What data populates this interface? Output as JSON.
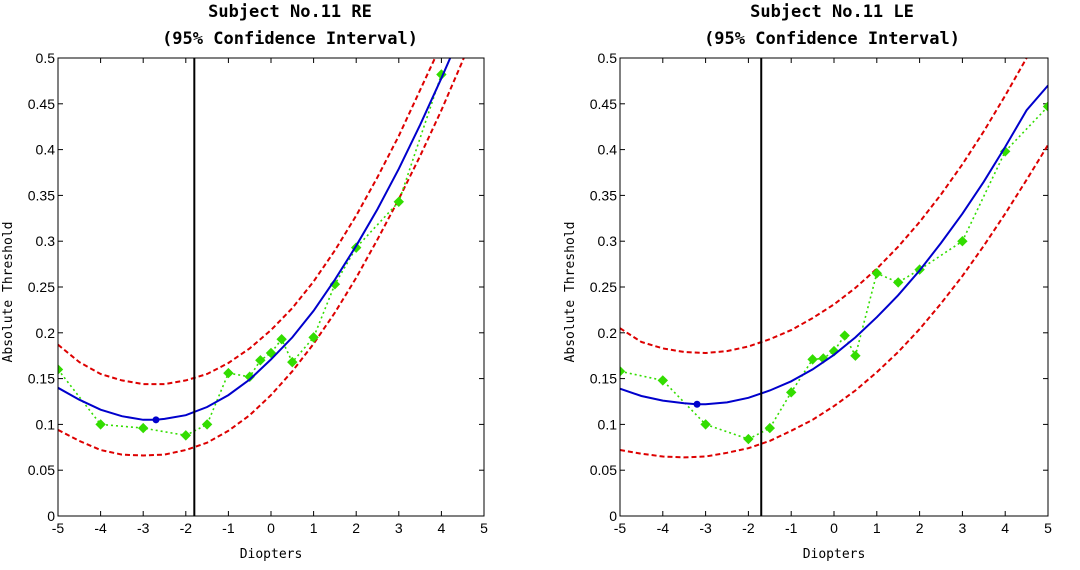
{
  "chart_data": [
    {
      "type": "line",
      "title": [
        "Subject No.11 RE",
        "(95% Confidence Interval)"
      ],
      "xlabel": "Diopters",
      "ylabel": "Absolute Threshold",
      "xlim": [
        -5,
        5
      ],
      "ylim": [
        0,
        0.5
      ],
      "xticks": [
        -5,
        -4,
        -3,
        -2,
        -1,
        0,
        1,
        2,
        3,
        4,
        5
      ],
      "xtick_labels": [
        "-5",
        "-4",
        "-3",
        "-2",
        "-1",
        "0",
        "1",
        "2",
        "3",
        "4",
        "5"
      ],
      "yticks": [
        0,
        0.05,
        0.1,
        0.15,
        0.2,
        0.25,
        0.3,
        0.35,
        0.4,
        0.45,
        0.5
      ],
      "ytick_labels": [
        "0",
        "0.05",
        "0.1",
        "0.15",
        "0.2",
        "0.25",
        "0.3",
        "0.35",
        "0.4",
        "0.45",
        "0.5"
      ],
      "vline_x": -1.8,
      "vertex": {
        "x": -2.7,
        "y": 0.105
      },
      "series": [
        {
          "role": "measured",
          "style": "dotted-diamond",
          "color": "#33dd00",
          "x": [
            -5,
            -4,
            -3,
            -2,
            -1.5,
            -1,
            -0.5,
            -0.25,
            0,
            0.25,
            0.5,
            1,
            1.5,
            2,
            3,
            4
          ],
          "y": [
            0.16,
            0.1,
            0.096,
            0.088,
            0.1,
            0.156,
            0.152,
            0.17,
            0.178,
            0.193,
            0.168,
            0.195,
            0.253,
            0.293,
            0.343,
            0.482
          ]
        },
        {
          "role": "fit",
          "style": "solid",
          "color": "#0000cc",
          "x": [
            -5,
            -4.5,
            -4,
            -3.5,
            -3,
            -2.7,
            -2.5,
            -2,
            -1.5,
            -1,
            -0.5,
            0,
            0.5,
            1,
            1.5,
            2,
            2.5,
            3,
            3.5,
            4,
            4.3
          ],
          "y": [
            0.14,
            0.127,
            0.116,
            0.109,
            0.105,
            0.105,
            0.106,
            0.11,
            0.119,
            0.132,
            0.149,
            0.171,
            0.195,
            0.224,
            0.258,
            0.295,
            0.335,
            0.379,
            0.427,
            0.478,
            0.51
          ]
        },
        {
          "role": "upper-ci",
          "style": "dashed",
          "color": "#dd0000",
          "x": [
            -5,
            -4.5,
            -4,
            -3.5,
            -3,
            -2.5,
            -2,
            -1.5,
            -1,
            -0.5,
            0,
            0.5,
            1,
            1.5,
            2,
            2.5,
            3,
            3.5,
            3.85,
            4.2
          ],
          "y": [
            0.187,
            0.168,
            0.155,
            0.148,
            0.144,
            0.144,
            0.148,
            0.155,
            0.167,
            0.183,
            0.203,
            0.227,
            0.256,
            0.29,
            0.328,
            0.37,
            0.415,
            0.465,
            0.5,
            0.53
          ]
        },
        {
          "role": "lower-ci",
          "style": "dashed",
          "color": "#dd0000",
          "x": [
            -5,
            -4.5,
            -4,
            -3.5,
            -3,
            -2.5,
            -2,
            -1.5,
            -1,
            -0.5,
            0,
            0.5,
            1,
            1.5,
            2,
            2.5,
            3,
            3.5,
            4,
            4.5,
            4.7
          ],
          "y": [
            0.094,
            0.082,
            0.072,
            0.067,
            0.066,
            0.067,
            0.072,
            0.08,
            0.093,
            0.11,
            0.132,
            0.158,
            0.188,
            0.222,
            0.26,
            0.302,
            0.346,
            0.393,
            0.443,
            0.497,
            0.52
          ]
        }
      ]
    },
    {
      "type": "line",
      "title": [
        "Subject No.11 LE",
        "(95% Confidence Interval)"
      ],
      "xlabel": "Diopters",
      "ylabel": "Absolute Threshold",
      "xlim": [
        -5,
        5
      ],
      "ylim": [
        0,
        0.5
      ],
      "xticks": [
        -5,
        -4,
        -3,
        -2,
        -1,
        0,
        1,
        2,
        3,
        4,
        5
      ],
      "xtick_labels": [
        "-5",
        "-4",
        "-3",
        "-2",
        "-1",
        "0",
        "1",
        "2",
        "3",
        "4",
        "5"
      ],
      "yticks": [
        0,
        0.05,
        0.1,
        0.15,
        0.2,
        0.25,
        0.3,
        0.35,
        0.4,
        0.45,
        0.5
      ],
      "ytick_labels": [
        "0",
        "0.05",
        "0.1",
        "0.15",
        "0.2",
        "0.25",
        "0.3",
        "0.35",
        "0.4",
        "0.45",
        "0.5"
      ],
      "vline_x": -1.7,
      "vertex": {
        "x": -3.2,
        "y": 0.122
      },
      "series": [
        {
          "role": "measured",
          "style": "dotted-diamond",
          "color": "#33dd00",
          "x": [
            -5,
            -4,
            -3,
            -2,
            -1.5,
            -1,
            -0.5,
            -0.25,
            0,
            0.25,
            0.5,
            1,
            1.5,
            2,
            3,
            4,
            5
          ],
          "y": [
            0.158,
            0.148,
            0.1,
            0.084,
            0.096,
            0.135,
            0.171,
            0.172,
            0.18,
            0.197,
            0.175,
            0.265,
            0.255,
            0.269,
            0.3,
            0.398,
            0.447
          ]
        },
        {
          "role": "fit",
          "style": "solid",
          "color": "#0000cc",
          "x": [
            -5,
            -4.5,
            -4,
            -3.5,
            -3.2,
            -3,
            -2.5,
            -2,
            -1.5,
            -1,
            -0.5,
            0,
            0.5,
            1,
            1.5,
            2,
            2.5,
            3,
            3.5,
            4,
            4.5,
            5
          ],
          "y": [
            0.139,
            0.131,
            0.126,
            0.123,
            0.122,
            0.122,
            0.124,
            0.129,
            0.137,
            0.147,
            0.16,
            0.176,
            0.195,
            0.217,
            0.241,
            0.268,
            0.298,
            0.33,
            0.365,
            0.403,
            0.443,
            0.47
          ]
        },
        {
          "role": "upper-ci",
          "style": "dashed",
          "color": "#dd0000",
          "x": [
            -5,
            -4.5,
            -4,
            -3.5,
            -3,
            -2.5,
            -2,
            -1.5,
            -1,
            -0.5,
            0,
            0.5,
            1,
            1.5,
            2,
            2.5,
            3,
            3.5,
            4,
            4.5,
            4.7
          ],
          "y": [
            0.205,
            0.19,
            0.183,
            0.179,
            0.178,
            0.18,
            0.185,
            0.193,
            0.203,
            0.216,
            0.231,
            0.249,
            0.27,
            0.294,
            0.321,
            0.351,
            0.384,
            0.42,
            0.459,
            0.5,
            0.515
          ]
        },
        {
          "role": "lower-ci",
          "style": "dashed",
          "color": "#dd0000",
          "x": [
            -5,
            -4.5,
            -4,
            -3.5,
            -3,
            -2.5,
            -2,
            -1.5,
            -1,
            -0.5,
            0,
            0.5,
            1,
            1.5,
            2,
            2.5,
            3,
            3.5,
            4,
            4.5,
            5
          ],
          "y": [
            0.072,
            0.068,
            0.065,
            0.064,
            0.065,
            0.069,
            0.074,
            0.082,
            0.093,
            0.105,
            0.12,
            0.137,
            0.157,
            0.179,
            0.204,
            0.232,
            0.262,
            0.295,
            0.33,
            0.367,
            0.405
          ]
        }
      ]
    }
  ]
}
